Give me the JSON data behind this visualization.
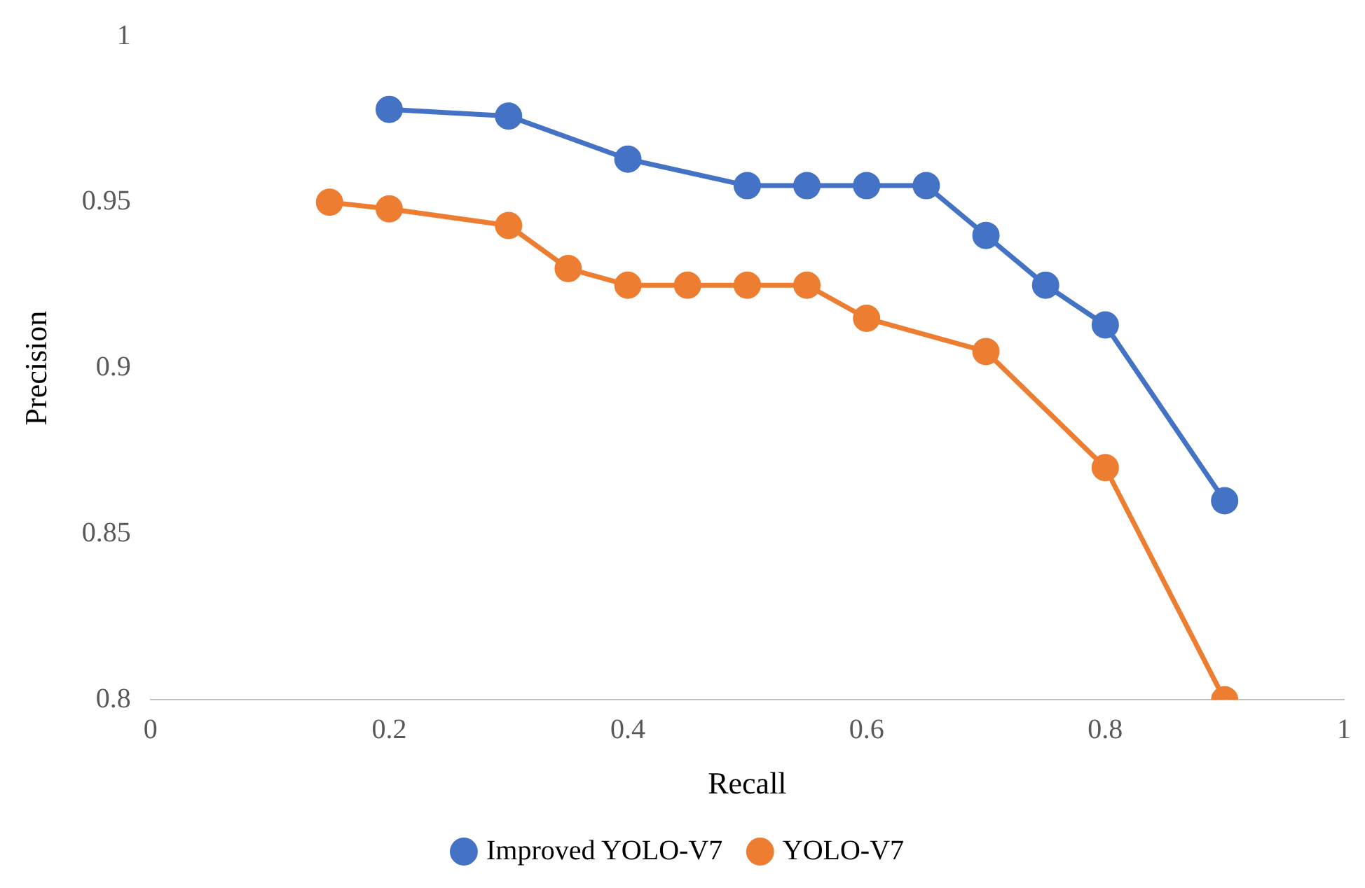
{
  "chart_data": {
    "type": "line",
    "xlabel": "Recall",
    "ylabel": "Precision",
    "xlim": [
      0,
      1
    ],
    "xticks": [
      0,
      0.2,
      0.4,
      0.6,
      0.8,
      1
    ],
    "ylim": [
      0.8,
      1
    ],
    "yticks": [
      0.8,
      0.85,
      0.9,
      0.95,
      1
    ],
    "grid": false,
    "legend": "bottom",
    "marker": "circle",
    "line_style": "solid",
    "series": [
      {
        "name": "Improved YOLO-V7",
        "color": "#4472c4",
        "x": [
          0.2,
          0.3,
          0.4,
          0.5,
          0.55,
          0.6,
          0.65,
          0.7,
          0.75,
          0.8,
          0.9
        ],
        "values": [
          0.978,
          0.976,
          0.963,
          0.955,
          0.955,
          0.955,
          0.955,
          0.94,
          0.925,
          0.913,
          0.86
        ]
      },
      {
        "name": "YOLO-V7",
        "color": "#ed7d31",
        "x": [
          0.15,
          0.2,
          0.3,
          0.35,
          0.4,
          0.45,
          0.5,
          0.55,
          0.6,
          0.7,
          0.8,
          0.9
        ],
        "values": [
          0.95,
          0.948,
          0.943,
          0.93,
          0.925,
          0.925,
          0.925,
          0.925,
          0.915,
          0.905,
          0.87,
          0.8
        ]
      }
    ]
  }
}
